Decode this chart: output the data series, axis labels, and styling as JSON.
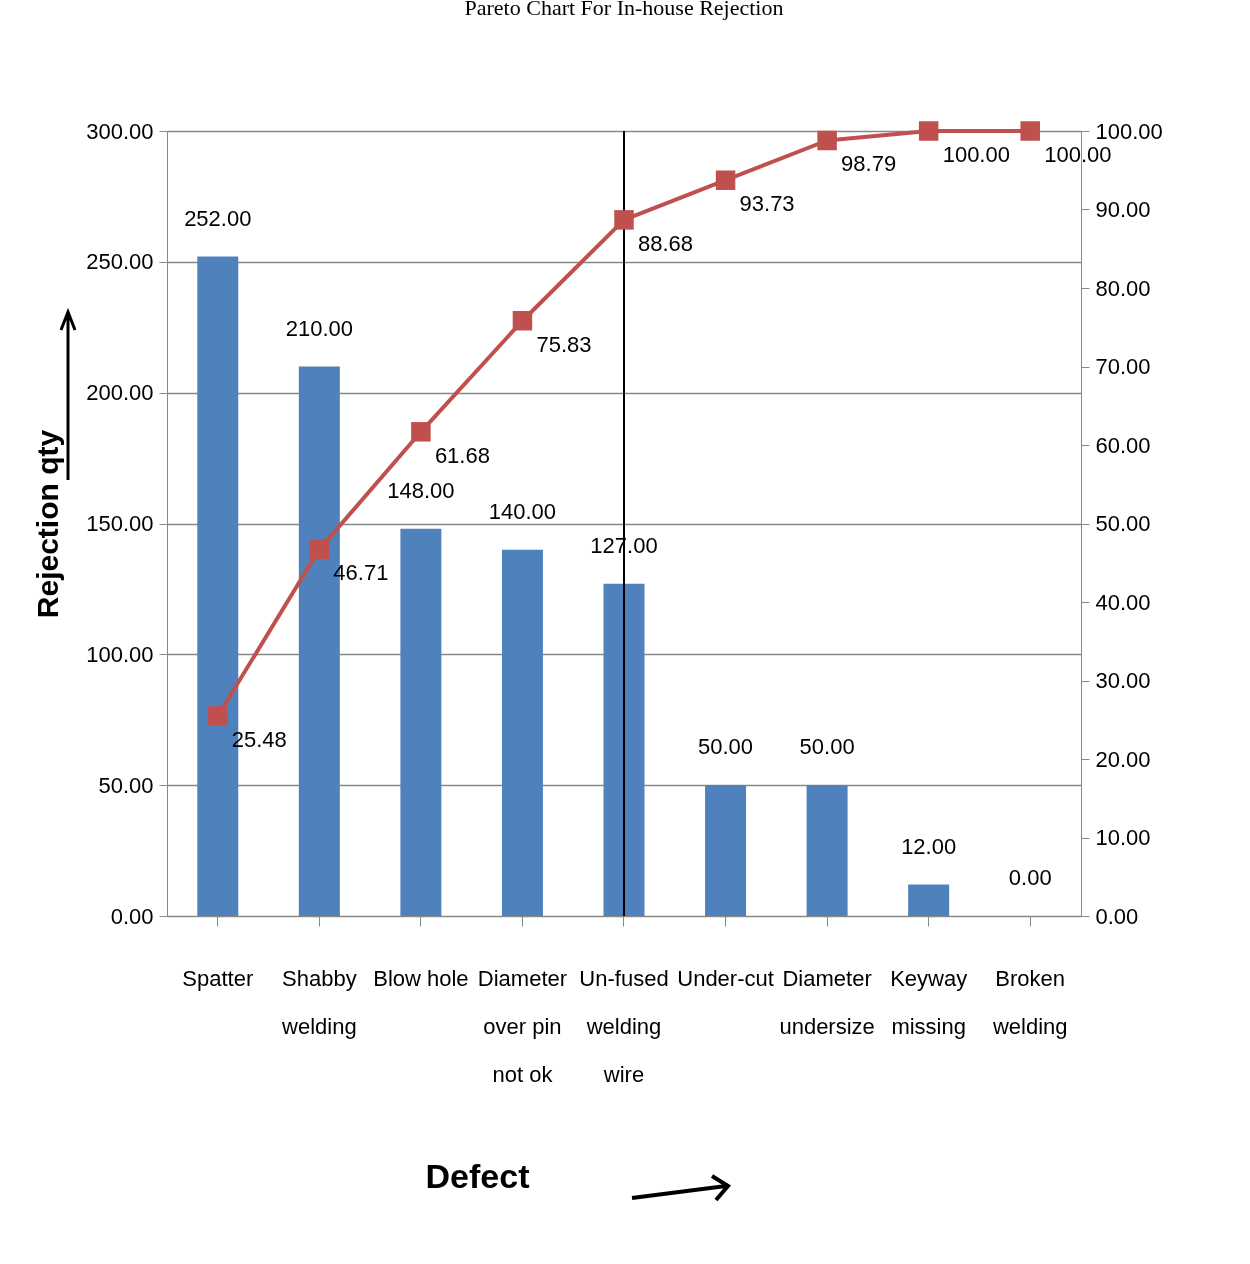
{
  "chart_data": {
    "type": "bar",
    "title": "Pareto Chart For In-house Rejection",
    "xlabel": "Defect",
    "ylabel": "Rejection  qty",
    "categories": [
      "Spatter",
      "Shabby welding",
      "Blow hole",
      "Diameter over pin not ok",
      "Un-fused welding wire",
      "Under-cut",
      "Diameter undersize",
      "Keyway missing",
      "Broken welding"
    ],
    "series": [
      {
        "color": "#4f81bd",
        "values": [
          252,
          210,
          148,
          140,
          127,
          50,
          50,
          12,
          0
        ],
        "value_labels": [
          "252.00",
          "210.00",
          "148.00",
          "140.00",
          "127.00",
          "50.00",
          "50.00",
          "12.00",
          "0.00"
        ]
      },
      {
        "type": "line",
        "axis": "y2",
        "color": "#c0504d",
        "marker": "square",
        "values": [
          25.48,
          46.71,
          61.68,
          75.83,
          88.68,
          93.73,
          98.79,
          100,
          100
        ],
        "value_labels": [
          "25.48",
          "46.71",
          "61.68",
          "75.83",
          "88.68",
          "93.73",
          "98.79",
          "100.00",
          "100.00"
        ]
      }
    ],
    "ylim": [
      0,
      300
    ],
    "yticks": [
      {
        "value": 0,
        "label": "0.00"
      },
      {
        "value": 50,
        "label": "50.00"
      },
      {
        "value": 100,
        "label": "100.00"
      },
      {
        "value": 150,
        "label": "150.00"
      },
      {
        "value": 200,
        "label": "200.00"
      },
      {
        "value": 250,
        "label": "250.00"
      },
      {
        "value": 300,
        "label": "300.00"
      }
    ],
    "y2lim": [
      0,
      100
    ],
    "y2ticks": [
      {
        "value": 0,
        "label": "0.00"
      },
      {
        "value": 10,
        "label": "10.00"
      },
      {
        "value": 20,
        "label": "20.00"
      },
      {
        "value": 30,
        "label": "30.00"
      },
      {
        "value": 40,
        "label": "40.00"
      },
      {
        "value": 50,
        "label": "50.00"
      },
      {
        "value": 60,
        "label": "60.00"
      },
      {
        "value": 70,
        "label": "70.00"
      },
      {
        "value": 80,
        "label": "80.00"
      },
      {
        "value": 90,
        "label": "90.00"
      },
      {
        "value": 100,
        "label": "100.00"
      }
    ],
    "grid": "y",
    "ref_lines": [
      {
        "axis": "x",
        "value": "Un-fused welding wire",
        "color": "#000000"
      }
    ]
  }
}
